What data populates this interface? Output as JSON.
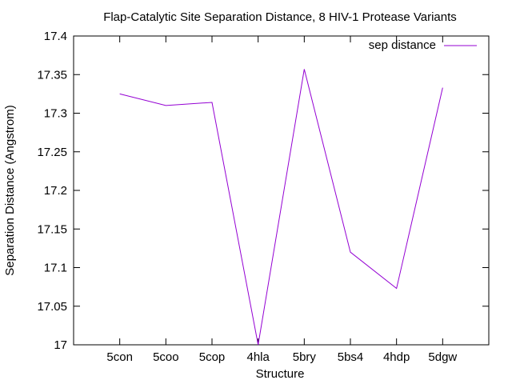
{
  "chart_data": {
    "type": "line",
    "title": "Flap-Catalytic Site Separation Distance, 8 HIV-1 Protease Variants",
    "xlabel": "Structure",
    "ylabel": "Separation Distance (Angstrom)",
    "categories": [
      "5con",
      "5coo",
      "5cop",
      "4hla",
      "5bry",
      "5bs4",
      "4hdp",
      "5dgw"
    ],
    "series": [
      {
        "name": "sep distance",
        "color": "#9400d3",
        "values": [
          17.325,
          17.31,
          17.314,
          17.0,
          17.357,
          17.12,
          17.073,
          17.333
        ]
      }
    ],
    "ylim": [
      17.0,
      17.4
    ],
    "yticks": [
      17.0,
      17.05,
      17.1,
      17.15,
      17.2,
      17.25,
      17.3,
      17.35,
      17.4
    ],
    "ytick_labels": [
      "17",
      "17.05",
      "17.1",
      "17.15",
      "17.2",
      "17.25",
      "17.3",
      "17.35",
      "17.4"
    ],
    "grid": false,
    "legend_position": "top-right"
  }
}
